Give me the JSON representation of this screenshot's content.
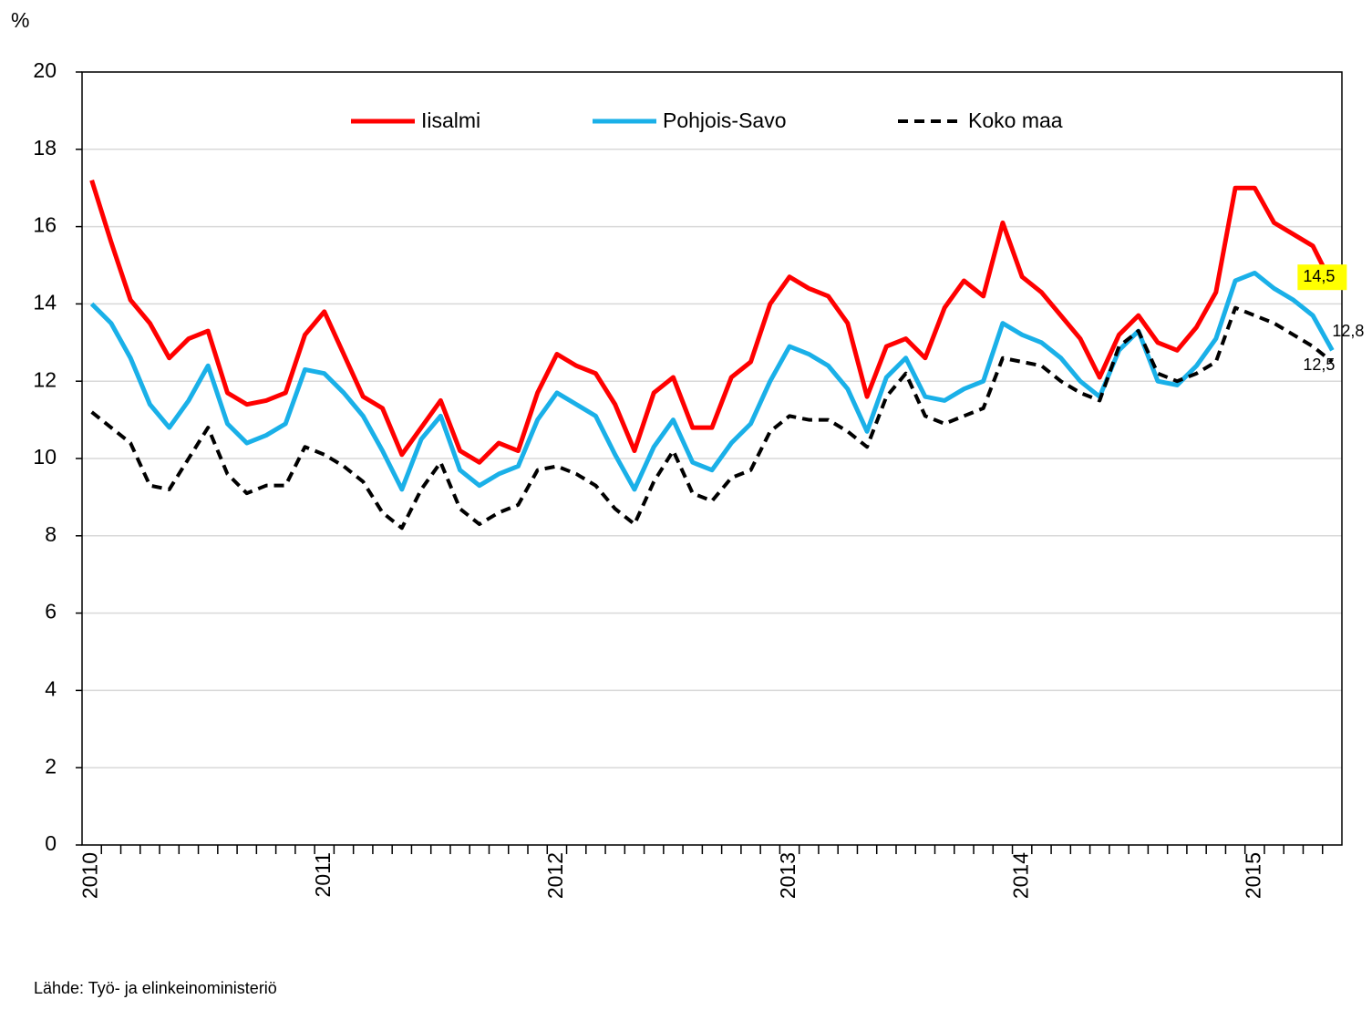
{
  "chart_data": {
    "type": "line",
    "ylabel": "%",
    "source": "Lähde: Työ- ja elinkeinoministeriö",
    "categories": [
      "2010",
      null,
      null,
      null,
      null,
      null,
      null,
      null,
      null,
      null,
      null,
      null,
      "2011",
      null,
      null,
      null,
      null,
      null,
      null,
      null,
      null,
      null,
      null,
      null,
      "2012",
      null,
      null,
      null,
      null,
      null,
      null,
      null,
      null,
      null,
      null,
      null,
      "2013",
      null,
      null,
      null,
      null,
      null,
      null,
      null,
      null,
      null,
      null,
      null,
      "2014",
      null,
      null,
      null,
      null,
      null,
      null,
      null,
      null,
      null,
      null,
      null,
      "2015",
      null,
      null,
      null,
      null
    ],
    "series": [
      {
        "name": "Iisalmi",
        "color": "#ff0000",
        "dash": false,
        "values": [
          17.2,
          15.6,
          14.1,
          13.5,
          12.6,
          13.1,
          13.3,
          11.7,
          11.4,
          11.5,
          11.7,
          13.2,
          13.8,
          12.7,
          11.6,
          11.3,
          10.1,
          10.8,
          11.5,
          10.2,
          9.9,
          10.4,
          10.2,
          11.7,
          12.7,
          12.4,
          12.2,
          11.4,
          10.2,
          11.7,
          12.1,
          10.8,
          10.8,
          12.1,
          12.5,
          14.0,
          14.7,
          14.4,
          14.2,
          13.5,
          11.6,
          12.9,
          13.1,
          12.6,
          13.9,
          14.6,
          14.2,
          16.1,
          14.7,
          14.3,
          13.7,
          13.1,
          12.1,
          13.2,
          13.7,
          13.0,
          12.8,
          13.4,
          14.3,
          17.0,
          17.0,
          16.1,
          15.8,
          15.5,
          14.5
        ],
        "value_labels": [
          null,
          null,
          null,
          null,
          null,
          null,
          null,
          null,
          null,
          null,
          null,
          null,
          null,
          null,
          null,
          null,
          null,
          null,
          null,
          null,
          null,
          null,
          null,
          null,
          null,
          null,
          null,
          null,
          null,
          null,
          null,
          null,
          null,
          null,
          null,
          null,
          null,
          null,
          null,
          null,
          null,
          null,
          null,
          null,
          null,
          null,
          null,
          null,
          null,
          null,
          null,
          null,
          null,
          null,
          null,
          null,
          null,
          null,
          null,
          null,
          null,
          null,
          null,
          null,
          "14,5"
        ]
      },
      {
        "name": "Pohjois-Savo",
        "color": "#1ab0e8",
        "dash": false,
        "values": [
          14.0,
          13.5,
          12.6,
          11.4,
          10.8,
          11.5,
          12.4,
          10.9,
          10.4,
          10.6,
          10.9,
          12.3,
          12.2,
          11.7,
          11.1,
          10.2,
          9.2,
          10.5,
          11.1,
          9.7,
          9.3,
          9.6,
          9.8,
          11.0,
          11.7,
          11.4,
          11.1,
          10.1,
          9.2,
          10.3,
          11.0,
          9.9,
          9.7,
          10.4,
          10.9,
          12.0,
          12.9,
          12.7,
          12.4,
          11.8,
          10.7,
          12.1,
          12.6,
          11.6,
          11.5,
          11.8,
          12.0,
          13.5,
          13.2,
          13.0,
          12.6,
          12.0,
          11.6,
          12.8,
          13.3,
          12.0,
          11.9,
          12.4,
          13.1,
          14.6,
          14.8,
          14.4,
          14.1,
          13.7,
          12.8
        ],
        "value_labels": [
          null,
          null,
          null,
          null,
          null,
          null,
          null,
          null,
          null,
          null,
          null,
          null,
          null,
          null,
          null,
          null,
          null,
          null,
          null,
          null,
          null,
          null,
          null,
          null,
          null,
          null,
          null,
          null,
          null,
          null,
          null,
          null,
          null,
          null,
          null,
          null,
          null,
          null,
          null,
          null,
          null,
          null,
          null,
          null,
          null,
          null,
          null,
          null,
          null,
          null,
          null,
          null,
          null,
          null,
          null,
          null,
          null,
          null,
          null,
          null,
          null,
          null,
          null,
          null,
          "12,8"
        ]
      },
      {
        "name": "Koko maa",
        "color": "#000000",
        "dash": true,
        "values": [
          11.2,
          10.8,
          10.4,
          9.3,
          9.2,
          10.0,
          10.8,
          9.6,
          9.1,
          9.3,
          9.3,
          10.3,
          10.1,
          9.8,
          9.4,
          8.6,
          8.2,
          9.2,
          9.9,
          8.7,
          8.3,
          8.6,
          8.8,
          9.7,
          9.8,
          9.6,
          9.3,
          8.7,
          8.3,
          9.4,
          10.2,
          9.1,
          8.9,
          9.5,
          9.7,
          10.7,
          11.1,
          11.0,
          11.0,
          10.7,
          10.3,
          11.6,
          12.2,
          11.1,
          10.9,
          11.1,
          11.3,
          12.6,
          12.5,
          12.4,
          12.0,
          11.7,
          11.5,
          12.9,
          13.3,
          12.2,
          12.0,
          12.2,
          12.5,
          13.9,
          13.7,
          13.5,
          13.2,
          12.9,
          12.5
        ],
        "value_labels": [
          null,
          null,
          null,
          null,
          null,
          null,
          null,
          null,
          null,
          null,
          null,
          null,
          null,
          null,
          null,
          null,
          null,
          null,
          null,
          null,
          null,
          null,
          null,
          null,
          null,
          null,
          null,
          null,
          null,
          null,
          null,
          null,
          null,
          null,
          null,
          null,
          null,
          null,
          null,
          null,
          null,
          null,
          null,
          null,
          null,
          null,
          null,
          null,
          null,
          null,
          null,
          null,
          null,
          null,
          null,
          null,
          null,
          null,
          null,
          null,
          null,
          null,
          null,
          null,
          "12,5"
        ]
      }
    ],
    "ylim": [
      0,
      20
    ],
    "yticks": [
      0,
      2,
      4,
      6,
      8,
      10,
      12,
      14,
      16,
      18,
      20
    ],
    "grid": true,
    "legend": "top"
  }
}
